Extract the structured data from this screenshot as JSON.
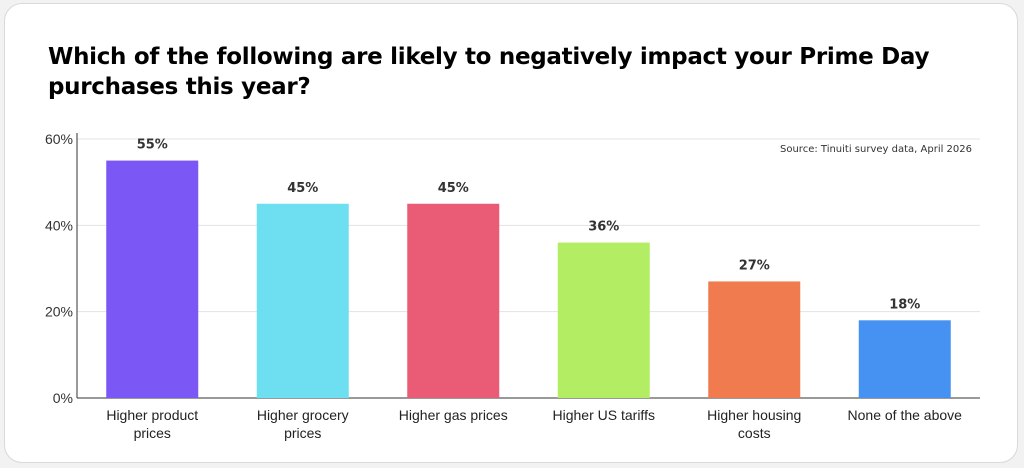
{
  "title": "Which of the following are likely to negatively impact your Prime Day purchases this year?",
  "source": "Source: Tinuiti survey data, April 2026",
  "chart_data": {
    "type": "bar",
    "title": "Which of the following are likely to negatively impact your Prime Day purchases this year?",
    "categories": [
      [
        "Higher product",
        "prices"
      ],
      [
        "Higher grocery",
        "prices"
      ],
      [
        "Higher gas prices"
      ],
      [
        "Higher US tariffs"
      ],
      [
        "Higher housing",
        "costs"
      ],
      [
        "None of the above"
      ]
    ],
    "values": [
      55,
      45,
      45,
      36,
      27,
      18
    ],
    "data_labels": [
      "55%",
      "45%",
      "45%",
      "36%",
      "27%",
      "18%"
    ],
    "colors": [
      "#7b57f5",
      "#6edff0",
      "#ea5b76",
      "#b3ed63",
      "#ef7b4f",
      "#4592f3"
    ],
    "ylim": [
      0,
      60
    ],
    "yticks": [
      0,
      20,
      40,
      60
    ],
    "ytick_labels": [
      "0%",
      "20%",
      "40%",
      "60%"
    ],
    "grid": true,
    "xlabel": "",
    "ylabel": ""
  }
}
